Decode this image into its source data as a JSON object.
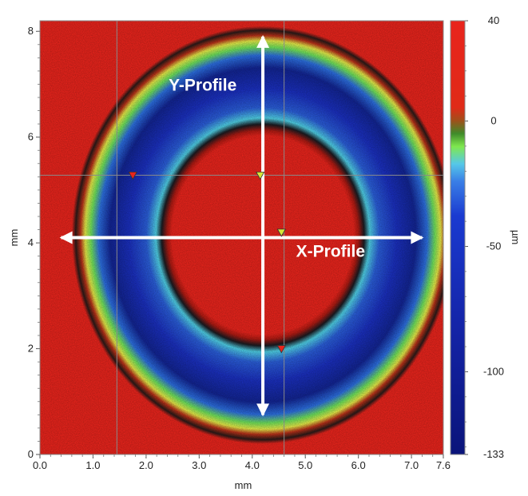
{
  "chart_data": {
    "type": "heatmap",
    "title": "",
    "xlabel": "mm",
    "ylabel": "mm",
    "xlim": [
      0,
      7.6
    ],
    "ylim": [
      0,
      8.2
    ],
    "x_ticks": [
      {
        "value": 0.0,
        "label": "0.0"
      },
      {
        "value": 1.0,
        "label": "1.0"
      },
      {
        "value": 2.0,
        "label": "2.0"
      },
      {
        "value": 3.0,
        "label": "3.0"
      },
      {
        "value": 4.0,
        "label": "4.0"
      },
      {
        "value": 5.0,
        "label": "5.0"
      },
      {
        "value": 6.0,
        "label": "6.0"
      },
      {
        "value": 7.0,
        "label": "7.0"
      },
      {
        "value": 7.6,
        "label": "7.6"
      }
    ],
    "y_ticks": [
      {
        "value": 0,
        "label": "0"
      },
      {
        "value": 2,
        "label": "2"
      },
      {
        "value": 4,
        "label": "4"
      },
      {
        "value": 6,
        "label": "6"
      },
      {
        "value": 8,
        "label": "8"
      }
    ],
    "colorbar": {
      "label": "µm",
      "range": [
        -133,
        40
      ],
      "ticks": [
        {
          "value": 40,
          "label": "40"
        },
        {
          "value": 0,
          "label": "0"
        },
        {
          "value": -50,
          "label": "-50"
        },
        {
          "value": -100,
          "label": "-100"
        },
        {
          "value": -133,
          "label": "-133"
        }
      ],
      "colors": [
        "#e8241c",
        "#c94a1a",
        "#2f9a35",
        "#7fe84e",
        "#3a7fe6",
        "#1a2fbe",
        "#0a1a8a"
      ]
    },
    "ring": {
      "center": [
        4.2,
        4.15
      ],
      "surface_height": 40,
      "min_height": -133,
      "outer_radius_x": 3.6,
      "outer_radius_y": 3.95,
      "inner_radius_x": 1.9,
      "inner_radius_y": 1.9
    },
    "guide_lines": {
      "x": [
        1.45,
        4.6
      ],
      "y": [
        5.28
      ]
    },
    "markers": [
      {
        "x": 1.75,
        "y": 5.28,
        "color": "#e8241c"
      },
      {
        "x": 4.15,
        "y": 5.28,
        "color": "#d6e63a"
      },
      {
        "x": 4.55,
        "y": 4.2,
        "color": "#d6e63a"
      },
      {
        "x": 4.55,
        "y": 2.0,
        "color": "#e8241c"
      }
    ],
    "profiles": [
      {
        "name": "Y-Profile",
        "orientation": "vertical",
        "x": 4.2,
        "from": 0.75,
        "to": 7.9
      },
      {
        "name": "X-Profile",
        "orientation": "horizontal",
        "y": 4.1,
        "from": 0.4,
        "to": 7.2
      }
    ]
  }
}
